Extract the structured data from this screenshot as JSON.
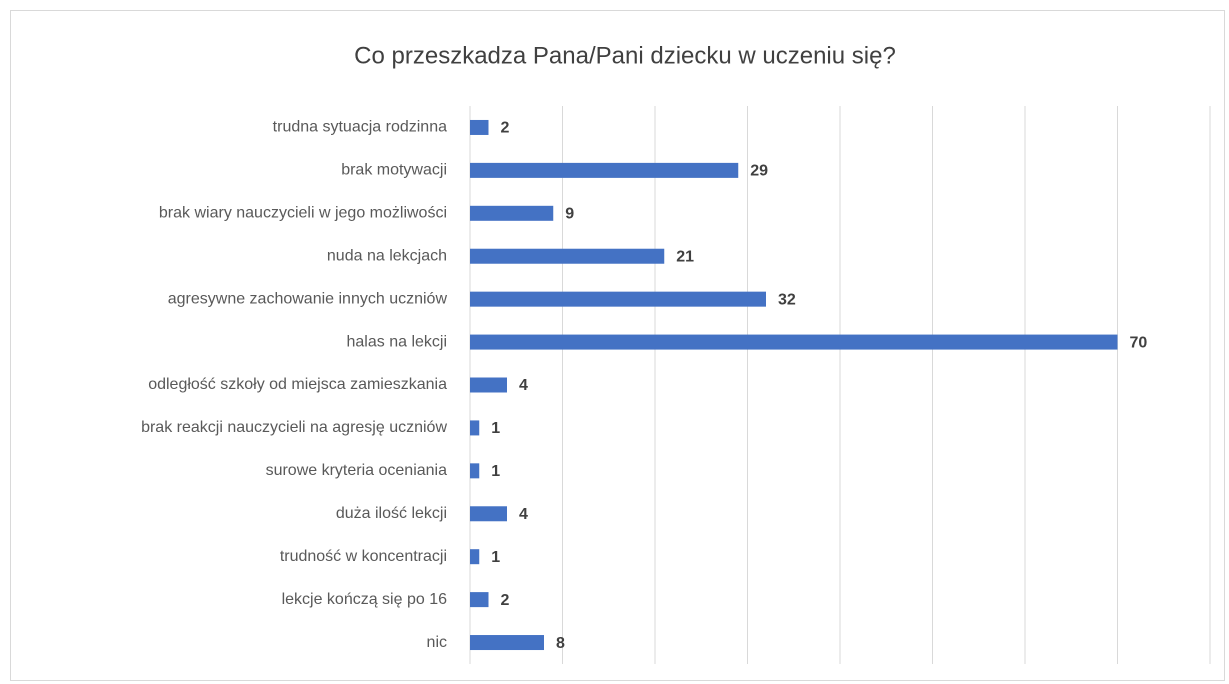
{
  "chart_data": {
    "type": "bar",
    "orientation": "horizontal",
    "title": "Co przeszkadza Pana/Pani dziecku w uczeniu się?",
    "categories": [
      "trudna sytuacja rodzinna",
      "brak motywacji",
      "brak wiary nauczycieli w jego możliwości",
      "nuda na lekcjach",
      "agresywne zachowanie innych uczniów",
      "halas na lekcji",
      "odległość szkoły od miejsca zamieszkania",
      "brak reakcji nauczycieli na agresję uczniów",
      "surowe kryteria oceniania",
      "duża ilość lekcji",
      "trudność w koncentracji",
      "lekcje kończą się po 16",
      "nic"
    ],
    "values": [
      2,
      29,
      9,
      21,
      32,
      70,
      4,
      1,
      1,
      4,
      1,
      2,
      8
    ],
    "color": "#4472c4",
    "xlim": [
      0,
      80
    ],
    "xticks": [
      0,
      10,
      20,
      30,
      40,
      50,
      60,
      70,
      80
    ],
    "grid": true
  }
}
